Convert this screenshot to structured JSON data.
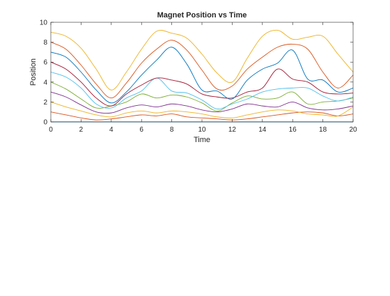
{
  "chart_data": {
    "type": "line",
    "title": "Magnet Position vs Time",
    "xlabel": "Time",
    "ylabel": "Position",
    "xlim": [
      0,
      20
    ],
    "ylim": [
      0,
      10
    ],
    "xticks": [
      "0",
      "2",
      "4",
      "6",
      "8",
      "10",
      "12",
      "14",
      "16",
      "18",
      "20"
    ],
    "yticks": [
      "0",
      "2",
      "4",
      "6",
      "8",
      "10"
    ],
    "grid": false,
    "series": [
      {
        "color": "#0072bd",
        "x": [
          0,
          2,
          4,
          6,
          8,
          10,
          12,
          14,
          16,
          18,
          20
        ],
        "values": [
          0,
          0,
          0,
          0,
          0,
          0,
          0,
          0,
          0,
          0,
          0
        ]
      },
      {
        "color": "#d95319",
        "x": [
          0,
          1,
          2,
          3,
          4,
          5,
          6,
          7,
          8,
          9,
          10,
          11,
          12,
          13,
          14,
          15,
          16,
          17,
          18,
          19,
          20
        ],
        "values": [
          1.0,
          0.7,
          0.4,
          0.2,
          0.3,
          0.5,
          0.7,
          0.6,
          0.8,
          0.5,
          0.4,
          0.3,
          0.2,
          0.3,
          0.5,
          0.7,
          0.9,
          1.0,
          0.9,
          0.6,
          0.8
        ]
      },
      {
        "color": "#edb120",
        "x": [
          0,
          1,
          2,
          3,
          4,
          5,
          6,
          7,
          8,
          9,
          10,
          11,
          12,
          13,
          14,
          15,
          16,
          17,
          18,
          19,
          20
        ],
        "values": [
          2.0,
          1.5,
          1.1,
          0.7,
          0.5,
          0.9,
          1.1,
          0.9,
          1.1,
          1.0,
          0.8,
          0.5,
          0.4,
          0.7,
          1.0,
          1.2,
          1.1,
          0.8,
          0.7,
          0.6,
          1.5
        ]
      },
      {
        "color": "#7e2f8e",
        "x": [
          0,
          1,
          2,
          3,
          4,
          5,
          6,
          7,
          8,
          9,
          10,
          11,
          12,
          13,
          14,
          15,
          16,
          17,
          18,
          19,
          20
        ],
        "values": [
          3.0,
          2.5,
          1.7,
          1.0,
          0.9,
          1.4,
          1.7,
          1.5,
          1.8,
          1.6,
          1.2,
          1.0,
          1.3,
          1.8,
          1.6,
          1.5,
          2.0,
          1.4,
          1.2,
          1.3,
          1.6
        ]
      },
      {
        "color": "#77ac30",
        "x": [
          0,
          1,
          2,
          3,
          4,
          5,
          6,
          7,
          8,
          9,
          10,
          11,
          12,
          13,
          14,
          15,
          16,
          17,
          18,
          19,
          20
        ],
        "values": [
          4.0,
          3.3,
          2.3,
          1.4,
          1.6,
          2.0,
          2.8,
          2.4,
          2.7,
          2.5,
          1.9,
          1.1,
          1.9,
          2.6,
          2.3,
          2.4,
          3.0,
          1.8,
          2.0,
          2.1,
          2.4
        ]
      },
      {
        "color": "#4dbeee",
        "x": [
          0,
          1,
          2,
          3,
          4,
          5,
          6,
          7,
          8,
          9,
          10,
          11,
          12,
          13,
          14,
          15,
          16,
          17,
          18,
          19,
          20
        ],
        "values": [
          5.0,
          4.5,
          3.4,
          1.8,
          1.4,
          2.4,
          3.1,
          4.4,
          3.1,
          2.9,
          2.2,
          1.3,
          1.8,
          2.3,
          3.0,
          3.3,
          3.4,
          3.4,
          2.6,
          2.1,
          2.5
        ]
      },
      {
        "color": "#a2142f",
        "x": [
          0,
          1,
          2,
          3,
          4,
          5,
          6,
          7,
          8,
          9,
          10,
          11,
          12,
          13,
          14,
          15,
          16,
          17,
          18,
          19,
          20
        ],
        "values": [
          6.0,
          5.3,
          4.0,
          2.4,
          1.6,
          2.8,
          3.7,
          4.4,
          4.2,
          3.8,
          2.8,
          2.5,
          2.4,
          3.0,
          3.4,
          5.3,
          4.3,
          4.0,
          3.0,
          2.8,
          2.9
        ]
      },
      {
        "color": "#0072bd",
        "x": [
          0,
          1,
          2,
          3,
          4,
          5,
          6,
          7,
          8,
          9,
          10,
          11,
          12,
          13,
          14,
          15,
          16,
          17,
          18,
          19,
          20
        ],
        "values": [
          7.0,
          6.5,
          5.0,
          3.2,
          1.9,
          3.0,
          4.7,
          6.2,
          7.5,
          5.8,
          3.2,
          3.1,
          2.3,
          4.2,
          5.3,
          5.9,
          7.2,
          4.3,
          4.2,
          3.0,
          3.4
        ]
      },
      {
        "color": "#d95319",
        "x": [
          0,
          1,
          2,
          3,
          4,
          5,
          6,
          7,
          8,
          9,
          10,
          11,
          12,
          13,
          14,
          15,
          16,
          17,
          18,
          19,
          20
        ],
        "values": [
          8.0,
          7.3,
          5.7,
          3.8,
          2.4,
          3.9,
          5.9,
          7.3,
          8.2,
          7.2,
          5.2,
          3.3,
          3.6,
          5.3,
          6.5,
          7.5,
          7.8,
          7.3,
          5.0,
          3.4,
          4.7
        ]
      },
      {
        "color": "#edb120",
        "x": [
          0,
          1,
          2,
          3,
          4,
          5,
          6,
          7,
          8,
          9,
          10,
          11,
          12,
          13,
          14,
          15,
          16,
          17,
          18,
          19,
          20
        ],
        "values": [
          9.0,
          8.6,
          7.4,
          5.3,
          3.2,
          5.0,
          7.3,
          9.1,
          8.9,
          8.4,
          6.8,
          4.9,
          4.0,
          6.4,
          8.6,
          9.2,
          8.3,
          8.5,
          8.6,
          6.8,
          5.0
        ]
      }
    ]
  }
}
